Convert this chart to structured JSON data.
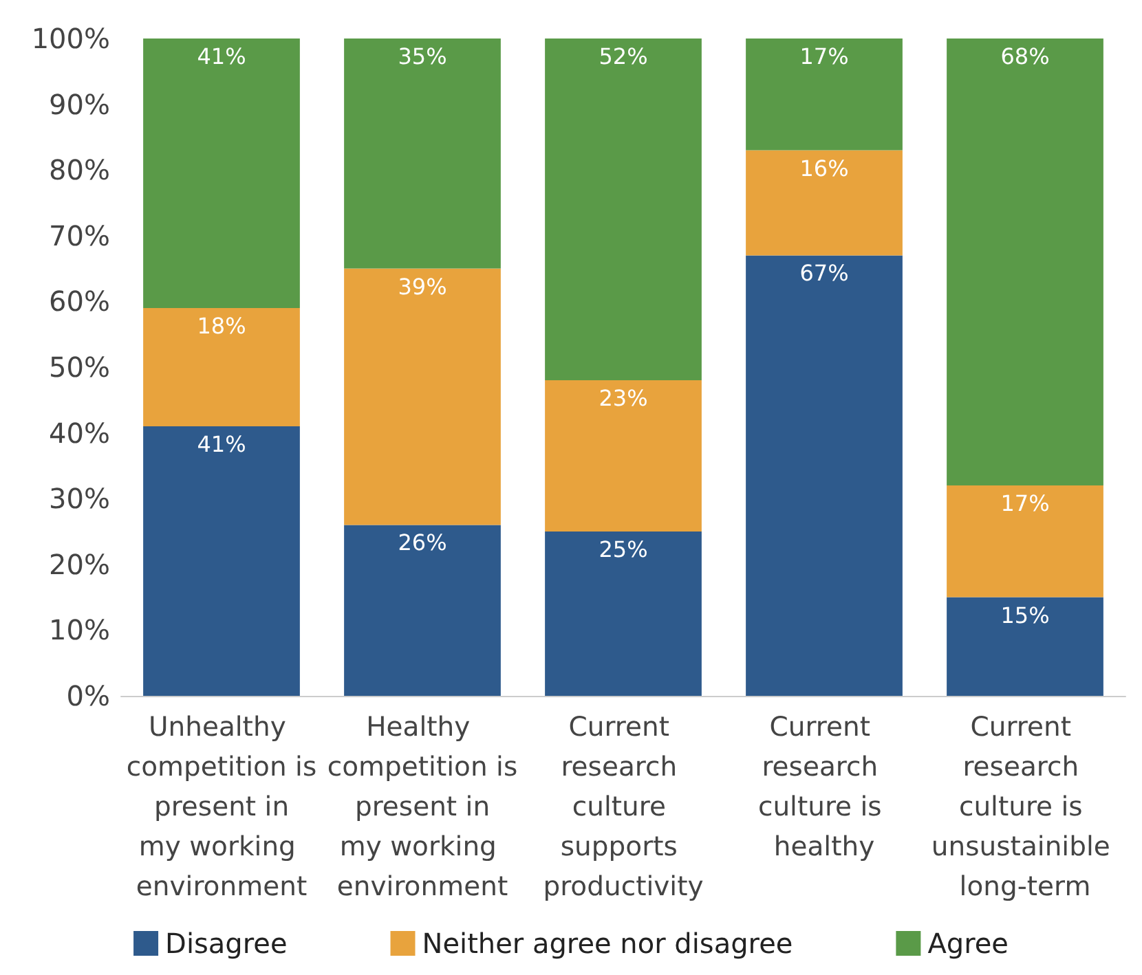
{
  "chart_data": {
    "type": "bar",
    "stacked": true,
    "categories": [
      "Unhealthy competition is present in my working environment",
      "Healthy competition is present in my working environment",
      "Current research culture supports productivity",
      "Current research culture is healthy",
      "Current research culture is unsustainible long-term"
    ],
    "series": [
      {
        "name": "Disagree",
        "color": "#2e5a8c",
        "values": [
          41,
          26,
          25,
          67,
          15
        ],
        "value_labels": [
          "41%",
          "26%",
          "25%",
          "67%",
          "15%"
        ]
      },
      {
        "name": "Neither agree nor disagree",
        "color": "#e8a33d",
        "values": [
          18,
          39,
          23,
          16,
          17
        ],
        "value_labels": [
          "18%",
          "39%",
          "23%",
          "16%",
          "17%"
        ]
      },
      {
        "name": "Agree",
        "color": "#5a9a48",
        "values": [
          41,
          35,
          52,
          17,
          68
        ],
        "value_labels": [
          "41%",
          "35%",
          "52%",
          "17%",
          "68%"
        ]
      }
    ],
    "ylim": [
      0,
      100
    ],
    "yticks": [
      {
        "value": 0,
        "label": "0%"
      },
      {
        "value": 10,
        "label": "10%"
      },
      {
        "value": 20,
        "label": "20%"
      },
      {
        "value": 30,
        "label": "30%"
      },
      {
        "value": 40,
        "label": "40%"
      },
      {
        "value": 50,
        "label": "50%"
      },
      {
        "value": 60,
        "label": "60%"
      },
      {
        "value": 70,
        "label": "70%"
      },
      {
        "value": 80,
        "label": "80%"
      },
      {
        "value": 90,
        "label": "90%"
      },
      {
        "value": 100,
        "label": "100%"
      }
    ],
    "grid": false,
    "legend": "bottom"
  }
}
